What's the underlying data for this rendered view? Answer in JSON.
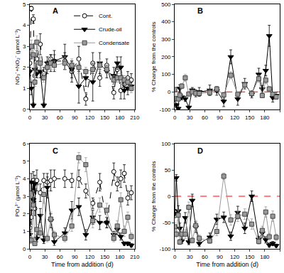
{
  "chart_data": [
    {
      "type": "line",
      "title": "A",
      "y_label": "NO₃⁻+NO₂⁻ (µmol L⁻¹)",
      "xlim": [
        0,
        210
      ],
      "xticks": [
        0,
        30,
        60,
        90,
        120,
        150,
        180,
        210
      ],
      "ylim": [
        0,
        5
      ],
      "yticks": [
        0,
        1,
        2,
        3,
        4,
        5
      ],
      "grid": false,
      "legend": "upper right",
      "x": [
        0,
        3,
        7,
        10,
        14,
        21,
        28,
        35,
        42,
        49,
        70,
        84,
        98,
        112,
        126,
        140,
        154,
        168,
        175,
        182,
        189,
        196,
        203
      ],
      "series": [
        {
          "name": "Cont.",
          "color": "#000000",
          "marker": "open_circle",
          "line_style": "dash",
          "values": [
            2.2,
            4.8,
            4.3,
            1.6,
            2.4,
            3.1,
            1.7,
            2.0,
            2.4,
            2.3,
            2.3,
            1.8,
            2.4,
            0.5,
            2.2,
            1.5,
            2.1,
            0.8,
            1.9,
            0.9,
            1.2,
            1.5,
            1.4
          ],
          "error": [
            0.3,
            0.1,
            0.2,
            0.3,
            0.4,
            0.5,
            0.3,
            0.3,
            0.2,
            0.3,
            0.4,
            0.5,
            0.6,
            0.3,
            0.5,
            0.4,
            0.3,
            0.3,
            0.3,
            0.4,
            0.3,
            0.3,
            0.3
          ]
        },
        {
          "name": "Crude-oil",
          "color": "#000000",
          "marker": "triangle_down",
          "line_style": "solid",
          "values": [
            1.8,
            1.0,
            0.2,
            1.9,
            1.7,
            1.8,
            0.2,
            2.2,
            2.2,
            2.3,
            2.5,
            1.9,
            1.1,
            1.5,
            1.3,
            2.2,
            1.8,
            1.6,
            2.2,
            2.0,
            0.9,
            1.0,
            1.1
          ],
          "error": [
            0.2,
            0.3,
            0.1,
            0.3,
            0.2,
            0.3,
            0.1,
            0.3,
            0.4,
            0.5,
            0.6,
            0.4,
            0.8,
            0.4,
            0.9,
            0.5,
            0.3,
            0.4,
            0.3,
            0.5,
            0.4,
            0.3,
            0.2
          ]
        },
        {
          "name": "Condensate",
          "color": "#9a9a9a",
          "marker": "square",
          "line_style": "solid",
          "values": [
            2.5,
            3.0,
            2.6,
            1.3,
            3.2,
            2.2,
            1.5,
            2.0,
            2.2,
            2.1,
            2.2,
            2.1,
            2.0,
            1.8,
            1.9,
            2.1,
            1.9,
            1.4,
            1.5,
            1.5,
            1.4,
            1.3,
            1.0
          ],
          "error": [
            0.2,
            0.3,
            0.2,
            0.2,
            0.3,
            0.3,
            0.2,
            0.2,
            0.3,
            0.2,
            0.3,
            0.3,
            0.3,
            0.2,
            0.3,
            0.3,
            0.2,
            0.2,
            0.2,
            0.2,
            0.2,
            0.2,
            0.2
          ]
        }
      ]
    },
    {
      "type": "line",
      "title": "B",
      "y_label": "% Change from the controls",
      "xlim": [
        0,
        210
      ],
      "xticks": [
        0,
        30,
        60,
        90,
        120,
        150,
        180,
        210
      ],
      "ylim": [
        -100,
        500
      ],
      "yticks": [
        -100,
        0,
        100,
        200,
        300,
        400,
        500
      ],
      "grid": false,
      "hline": {
        "value": 0,
        "color": "#ff0000",
        "line_style": "dash"
      },
      "x": [
        0,
        3,
        7,
        10,
        14,
        21,
        28,
        35,
        42,
        49,
        70,
        84,
        98,
        112,
        126,
        140,
        154,
        168,
        175,
        182,
        189,
        196,
        203
      ],
      "series": [
        {
          "color": "#000000",
          "marker": "triangle_down",
          "line_style": "solid",
          "values": [
            -40,
            -75,
            -95,
            20,
            -30,
            -40,
            -88,
            10,
            -8,
            0,
            9,
            6,
            -54,
            200,
            -41,
            47,
            -14,
            100,
            16,
            122,
            320,
            -33,
            -21
          ],
          "error": [
            10,
            10,
            5,
            20,
            15,
            15,
            5,
            15,
            20,
            25,
            30,
            25,
            30,
            40,
            35,
            30,
            20,
            35,
            20,
            30,
            60,
            25,
            20
          ]
        },
        {
          "color": "#9a9a9a",
          "marker": "square",
          "line_style": "solid",
          "values": [
            14,
            -38,
            -40,
            -19,
            33,
            80,
            -12,
            0,
            -8,
            -9,
            -4,
            17,
            -17,
            95,
            -14,
            40,
            -10,
            75,
            -21,
            67,
            17,
            -13,
            -29
          ],
          "error": [
            10,
            10,
            10,
            10,
            15,
            20,
            10,
            10,
            10,
            10,
            15,
            15,
            15,
            20,
            15,
            15,
            10,
            20,
            10,
            20,
            15,
            10,
            10
          ]
        }
      ]
    },
    {
      "type": "line",
      "title": "C",
      "x_label": "Time from addition (d)",
      "y_label": "PO₄³⁻ (µmol L⁻¹)",
      "xlim": [
        0,
        210
      ],
      "xticks": [
        0,
        30,
        60,
        90,
        120,
        150,
        180,
        210
      ],
      "ylim": [
        0,
        6
      ],
      "yticks": [
        0,
        1,
        2,
        3,
        4,
        5,
        6
      ],
      "grid": false,
      "x": [
        0,
        3,
        7,
        10,
        14,
        21,
        28,
        35,
        42,
        49,
        70,
        84,
        98,
        112,
        126,
        140,
        154,
        168,
        175,
        182,
        189,
        196,
        203
      ],
      "series": [
        {
          "color": "#000000",
          "marker": "open_circle",
          "line_style": "dash",
          "values": [
            1.2,
            1.8,
            3.9,
            2.3,
            3.9,
            3.2,
            3.9,
            3.8,
            3.9,
            4.0,
            4.0,
            3.9,
            4.0,
            3.3,
            2.6,
            3.8,
            1.5,
            4.4,
            3.7,
            4.0,
            4.3,
            2.9,
            3.2
          ],
          "error": [
            0.3,
            0.4,
            0.5,
            0.4,
            0.6,
            0.5,
            0.4,
            0.5,
            0.6,
            0.5,
            0.5,
            0.4,
            0.5,
            0.4,
            0.3,
            0.5,
            0.3,
            0.5,
            0.4,
            0.5,
            0.5,
            0.4,
            0.4
          ]
        },
        {
          "color": "#000000",
          "marker": "triangle_down",
          "line_style": "solid",
          "values": [
            0.8,
            3.8,
            2.8,
            3.7,
            0.6,
            1.9,
            0.5,
            3.5,
            1.6,
            0.4,
            0.9,
            2.2,
            2.4,
            0.8,
            1.8,
            1.5,
            1.5,
            0.8,
            1.1,
            0.7,
            0.3,
            0.3,
            0.2
          ],
          "error": [
            0.2,
            0.5,
            0.6,
            0.5,
            0.2,
            0.4,
            0.2,
            0.6,
            0.4,
            0.2,
            0.3,
            0.5,
            0.5,
            0.3,
            0.4,
            0.4,
            0.3,
            0.2,
            0.3,
            0.2,
            0.1,
            0.1,
            0.1
          ]
        },
        {
          "color": "#9a9a9a",
          "marker": "square",
          "line_style": "solid",
          "values": [
            0.5,
            0.5,
            2.5,
            0.3,
            1.1,
            0.9,
            3.1,
            0.6,
            1.7,
            0.8,
            0.6,
            1.3,
            5.2,
            4.8,
            1.6,
            2.5,
            2.2,
            0.6,
            1.3,
            2.8,
            1.0,
            1.8,
            0.7
          ],
          "error": [
            0.2,
            0.2,
            0.5,
            0.1,
            0.3,
            0.3,
            0.5,
            0.2,
            0.4,
            0.2,
            0.2,
            0.3,
            0.3,
            0.4,
            0.4,
            0.4,
            0.4,
            0.2,
            0.3,
            0.4,
            0.3,
            0.3,
            0.2
          ]
        }
      ]
    },
    {
      "type": "line",
      "title": "D",
      "x_label": "Time from addition (d)",
      "y_label": "% Change from the controls",
      "xlim": [
        0,
        210
      ],
      "xticks": [
        0,
        30,
        60,
        90,
        120,
        150,
        180,
        210
      ],
      "ylim": [
        -100,
        100
      ],
      "yticks": [
        -100,
        -50,
        0,
        50,
        100
      ],
      "grid": false,
      "hline": {
        "value": 0,
        "color": "#ff0000",
        "line_style": "dash"
      },
      "x": [
        0,
        3,
        7,
        10,
        14,
        21,
        28,
        35,
        42,
        49,
        70,
        84,
        98,
        112,
        126,
        140,
        154,
        168,
        175,
        182,
        189,
        196,
        203
      ],
      "series": [
        {
          "color": "#000000",
          "marker": "triangle_down",
          "line_style": "solid",
          "values": [
            -33,
            35,
            -28,
            -61,
            -85,
            -41,
            -87,
            -8,
            -59,
            -90,
            -78,
            -44,
            -40,
            -76,
            -31,
            -61,
            0,
            -82,
            -70,
            -83,
            -93,
            -90,
            -94
          ],
          "error": [
            8,
            6,
            10,
            10,
            5,
            10,
            5,
            12,
            10,
            5,
            8,
            10,
            10,
            8,
            12,
            10,
            10,
            6,
            8,
            6,
            4,
            4,
            3
          ]
        },
        {
          "color": "#9a9a9a",
          "marker": "square",
          "line_style": "solid",
          "values": [
            -58,
            -72,
            -36,
            -87,
            -72,
            -72,
            -21,
            -84,
            -56,
            -80,
            -85,
            -67,
            38,
            -45,
            -38,
            -34,
            -53,
            -86,
            -65,
            -30,
            -77,
            -38,
            -78
          ],
          "error": [
            8,
            6,
            10,
            5,
            8,
            8,
            10,
            5,
            10,
            6,
            5,
            8,
            6,
            10,
            10,
            10,
            10,
            5,
            8,
            10,
            6,
            10,
            6
          ]
        }
      ]
    }
  ]
}
